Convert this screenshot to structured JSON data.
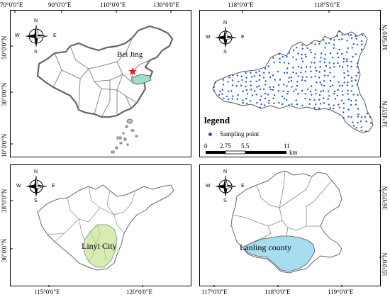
{
  "panels": {
    "china": {
      "top_labels": [
        "70°0'0\"E",
        "90°0'0\"E",
        "110°0'0\"E",
        "130°0'0\"E"
      ],
      "left_labels": [
        "50°0'0\"N",
        "30°0'0\"N",
        "10°0'0\"N"
      ],
      "capital_label": "Bei Jing"
    },
    "lanling_points": {
      "top_labels": [
        "118°0'0\"E",
        "118°5'0\"E"
      ],
      "right_labels": [
        "34°50'0\"N",
        "34°45'0\"N"
      ],
      "legend_title": "legend",
      "legend_item": "Sampling point",
      "scalebar_ticks": [
        "0",
        "2.75",
        "5.5",
        "11"
      ],
      "scalebar_unit": "km"
    },
    "shandong": {
      "left_labels": [
        "38°0'0\"N",
        "36°0'0\"N"
      ],
      "bottom_labels": [
        "115°0'0\"E",
        "120°0'0\"E"
      ],
      "city_label": "Linyi City"
    },
    "linyi": {
      "right_labels": [
        "36°0'0\"N",
        "35°0'0\"N"
      ],
      "bottom_labels": [
        "117°0'0\"E",
        "118°0'0\"E",
        "119°0'0\"E"
      ],
      "county_label": "Lanling county"
    }
  },
  "compass": {
    "n": "N",
    "s": "S",
    "w": "W",
    "e": "E"
  },
  "colors": {
    "highlight_province": "#9fe0cc",
    "highlight_city": "#d6ecb0",
    "highlight_county": "#a8dcef",
    "sampling_point": "#1a56c8",
    "capital_star": "#e02020",
    "boundary": "#777777"
  }
}
